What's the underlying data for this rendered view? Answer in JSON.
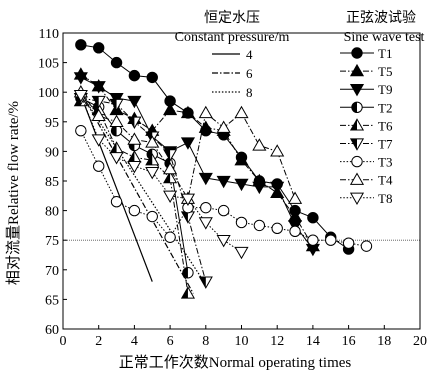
{
  "chart_data": {
    "type": "line",
    "xlabel": "正常工作次数Normal operating times",
    "ylabel": "相对流量Relative flow rate/%",
    "xlim": [
      0,
      20
    ],
    "ylim": [
      60,
      110
    ],
    "xticks": [
      0,
      2,
      4,
      6,
      8,
      10,
      12,
      14,
      16,
      18,
      20
    ],
    "yticks": [
      60,
      65,
      70,
      75,
      80,
      85,
      90,
      95,
      100,
      105,
      110
    ],
    "reference_line_y": 75,
    "legend_constant_title_cn": "恒定水压",
    "legend_constant_title_en": "Constant pressure/m",
    "legend_sine_title_cn": "正弦波试验",
    "legend_sine_title_en": "Sine wave test",
    "constant_pressure": [
      {
        "name": "4",
        "dash": "solid",
        "x": [
          1,
          5
        ],
        "y": [
          99.5,
          68
        ]
      },
      {
        "name": "6",
        "dash": "dashdot",
        "x": [
          1,
          7.3
        ],
        "y": [
          100,
          66
        ]
      },
      {
        "name": "8",
        "dash": "dotted",
        "x": [
          1,
          8
        ],
        "y": [
          99.8,
          67.5
        ]
      }
    ],
    "series": [
      {
        "name": "T1",
        "marker": "circle-filled",
        "dash": "solid",
        "x": [
          1,
          2,
          3,
          4,
          5,
          6,
          7,
          8,
          9,
          10,
          11,
          12,
          13,
          14,
          15,
          16
        ],
        "y": [
          108,
          107.5,
          105,
          102.8,
          102.5,
          98.5,
          96.5,
          93.5,
          92.8,
          89,
          85,
          84.5,
          80,
          78.8,
          75.5,
          73.5
        ]
      },
      {
        "name": "T5",
        "marker": "triangle-up-filled",
        "dash": "dashdot",
        "x": [
          1,
          2,
          3,
          4,
          5,
          6,
          7,
          8,
          9,
          10,
          11,
          12,
          13,
          14
        ],
        "y": [
          103,
          101,
          97,
          95.5,
          93.5,
          97,
          96.5,
          94,
          93.5,
          88.5,
          85,
          83,
          79,
          74
        ]
      },
      {
        "name": "T9",
        "marker": "triangle-down-filled",
        "dash": "solid",
        "x": [
          1,
          2,
          3,
          4,
          5,
          6,
          7,
          8,
          9,
          10,
          11,
          12,
          13,
          14
        ],
        "y": [
          102.5,
          101,
          99,
          98.5,
          92.5,
          90,
          91.5,
          85.5,
          85,
          84.5,
          84,
          84,
          77.5,
          73.5
        ]
      },
      {
        "name": "T2",
        "marker": "circle-half",
        "dash": "solid",
        "x": [
          1,
          2,
          3,
          4,
          5,
          6,
          7
        ],
        "y": [
          99,
          97.5,
          93.5,
          91,
          89.5,
          88,
          69.5
        ]
      },
      {
        "name": "T6",
        "marker": "triangle-up-half",
        "dash": "dashdot",
        "x": [
          1,
          2,
          3,
          4,
          5,
          6,
          7
        ],
        "y": [
          98.5,
          97,
          90.5,
          89,
          88.5,
          85.5,
          66
        ]
      },
      {
        "name": "T7",
        "marker": "triangle-down-half",
        "dash": "dashdot",
        "x": [
          1,
          2,
          3,
          4,
          5,
          6,
          7,
          8
        ],
        "y": [
          99,
          98.5,
          98,
          95,
          92.5,
          89.5,
          79,
          68
        ]
      },
      {
        "name": "T3",
        "marker": "circle-open",
        "dash": "dotted",
        "x": [
          1,
          2,
          3,
          4,
          5,
          6,
          7,
          8,
          9,
          10,
          11,
          12,
          13,
          14,
          15,
          16,
          17
        ],
        "y": [
          93.5,
          87.5,
          81.5,
          80,
          79,
          75.5,
          80.5,
          80.5,
          80,
          78,
          77.5,
          77,
          76.5,
          75,
          75,
          74.5,
          74
        ]
      },
      {
        "name": "T4",
        "marker": "triangle-up-open",
        "dash": "dashdot",
        "x": [
          1,
          2,
          3,
          4,
          5,
          6,
          7,
          8,
          9,
          10,
          11,
          12,
          13
        ],
        "y": [
          100,
          96,
          95,
          92,
          91.5,
          87,
          82,
          96.5,
          94,
          96.5,
          91,
          90,
          82
        ]
      },
      {
        "name": "T8",
        "marker": "triangle-down-open",
        "dash": "dotted",
        "x": [
          1,
          2,
          3,
          4,
          5,
          6,
          7,
          8,
          9,
          10
        ],
        "y": [
          99.5,
          92,
          89,
          87.5,
          86.5,
          82.5,
          82,
          78,
          75,
          73
        ]
      }
    ]
  }
}
